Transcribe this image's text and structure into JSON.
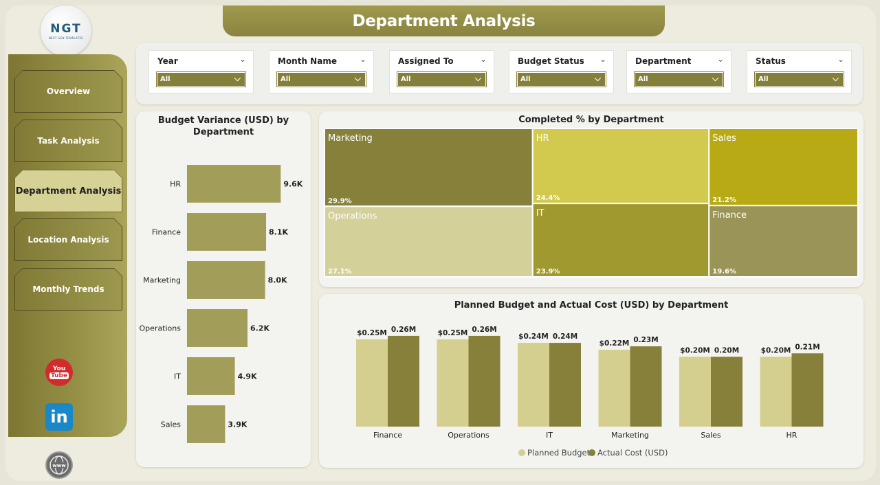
{
  "header": {
    "title": "Department Analysis"
  },
  "logo": {
    "mark": "NGT",
    "sub": "NEXT GEN TEMPLATES"
  },
  "nav": {
    "items": [
      {
        "label": "Overview",
        "active": false
      },
      {
        "label": "Task Analysis",
        "active": false
      },
      {
        "label": "Department Analysis",
        "active": true
      },
      {
        "label": "Location Analysis",
        "active": false
      },
      {
        "label": "Monthly Trends",
        "active": false
      }
    ]
  },
  "social": {
    "youtube_top": "You",
    "youtube_bottom": "Tube",
    "linkedin": "in"
  },
  "filters": [
    {
      "label": "Year",
      "value": "All"
    },
    {
      "label": "Month Name",
      "value": "All"
    },
    {
      "label": "Assigned To",
      "value": "All"
    },
    {
      "label": "Budget Status",
      "value": "All"
    },
    {
      "label": "Department",
      "value": "All"
    },
    {
      "label": "Status",
      "value": "All"
    }
  ],
  "colors": {
    "accent": "#857f3c",
    "bar": "#a39d5a",
    "planned": "#d4cf8e",
    "actual": "#86803b"
  },
  "chart_data": [
    {
      "type": "bar",
      "orientation": "horizontal",
      "title": "Budget Variance (USD) by Department",
      "categories": [
        "HR",
        "Finance",
        "Marketing",
        "Operations",
        "IT",
        "Sales"
      ],
      "values": [
        9600,
        8100,
        8000,
        6200,
        4900,
        3900
      ],
      "labels": [
        "9.6K",
        "8.1K",
        "8.0K",
        "6.2K",
        "4.9K",
        "3.9K"
      ],
      "xlim": [
        0,
        10000
      ]
    },
    {
      "type": "treemap",
      "title": "Completed % by Department",
      "categories": [
        "Marketing",
        "Operations",
        "HR",
        "IT",
        "Sales",
        "Finance"
      ],
      "values": [
        29.9,
        27.1,
        24.4,
        23.9,
        21.2,
        19.6
      ],
      "labels": [
        "29.9%",
        "27.1%",
        "24.4%",
        "23.9%",
        "21.2%",
        "19.6%"
      ],
      "colors": [
        "#86803b",
        "#d4d09a",
        "#d2c94f",
        "#a0992f",
        "#b8aa14",
        "#9a9456"
      ]
    },
    {
      "type": "bar",
      "title": "Planned Budget and Actual Cost (USD) by Department",
      "categories": [
        "Finance",
        "Operations",
        "IT",
        "Marketing",
        "Sales",
        "HR"
      ],
      "series": [
        {
          "name": "Planned Budget",
          "values": [
            0.25,
            0.25,
            0.24,
            0.22,
            0.2,
            0.2
          ],
          "labels": [
            "$0.25M",
            "$0.25M",
            "$0.24M",
            "$0.22M",
            "$0.20M",
            "$0.20M"
          ]
        },
        {
          "name": "Actual Cost (USD)",
          "values": [
            0.26,
            0.26,
            0.24,
            0.23,
            0.2,
            0.21
          ],
          "labels": [
            "0.26M",
            "0.26M",
            "0.24M",
            "0.23M",
            "0.20M",
            "0.21M"
          ]
        }
      ],
      "ylabel": "",
      "ylim": [
        0,
        0.3
      ],
      "legend": "bottom"
    }
  ]
}
